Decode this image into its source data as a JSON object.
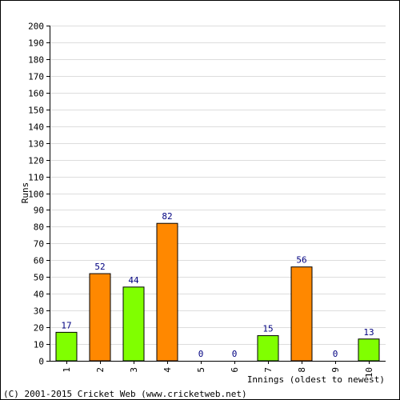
{
  "chart_data": {
    "type": "bar",
    "categories": [
      "1",
      "2",
      "3",
      "4",
      "5",
      "6",
      "7",
      "8",
      "9",
      "10"
    ],
    "values": [
      17,
      52,
      44,
      82,
      0,
      0,
      15,
      56,
      0,
      13
    ],
    "bar_colors": [
      "#80ff00",
      "#ff8800",
      "#80ff00",
      "#ff8800",
      "#80ff00",
      "#ff8800",
      "#80ff00",
      "#ff8800",
      "#80ff00",
      "#80ff00"
    ],
    "title": "",
    "xlabel": "Innings (oldest to newest)",
    "ylabel": "Runs",
    "ylim": [
      0,
      200
    ],
    "yticks": [
      0,
      10,
      20,
      30,
      40,
      50,
      60,
      70,
      80,
      90,
      100,
      110,
      120,
      130,
      140,
      150,
      160,
      170,
      180,
      190,
      200
    ],
    "grid": true,
    "grid_color": "#dddddd",
    "label_color": "#000080"
  },
  "footer": "(C) 2001-2015 Cricket Web (www.cricketweb.net)"
}
